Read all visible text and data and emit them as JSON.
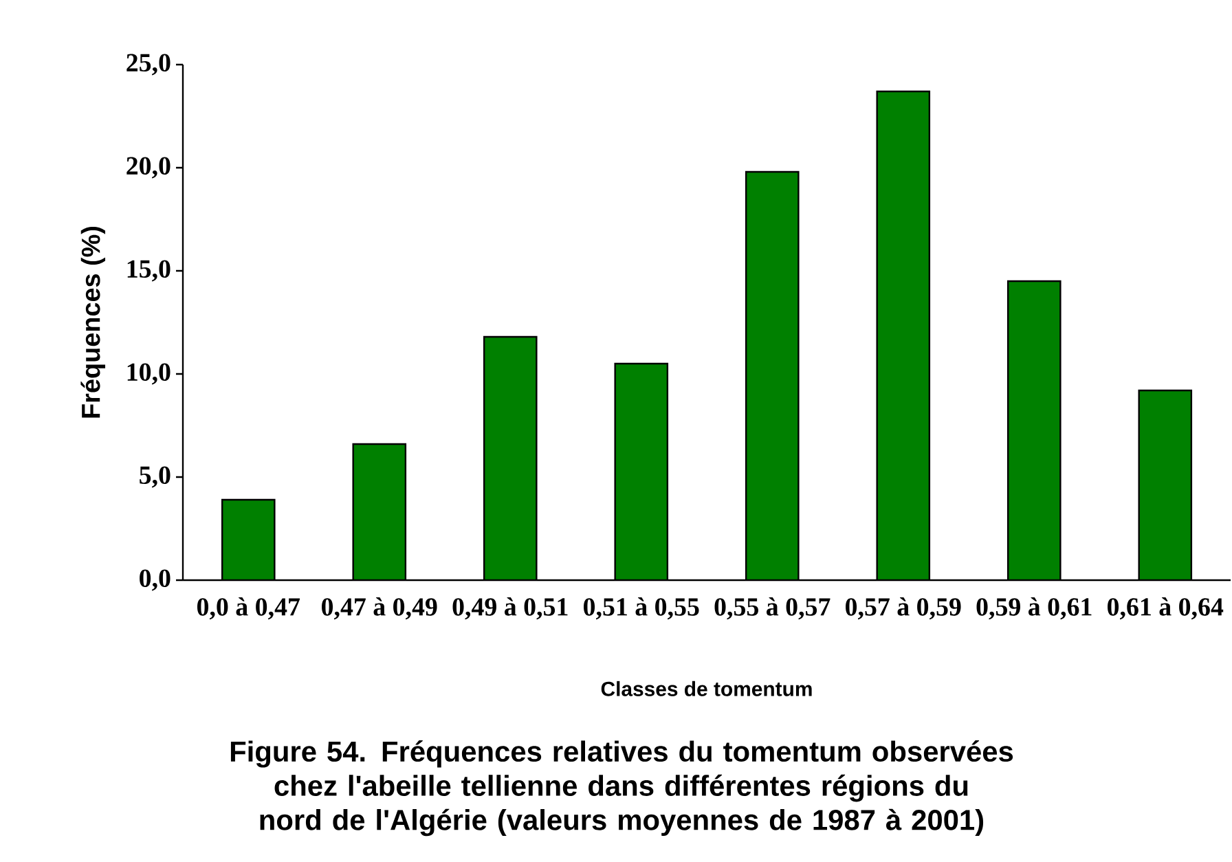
{
  "chart_data": {
    "type": "bar",
    "title": "Figure 54.  Fréquences relatives du tomentum observées chez l'abeille tellienne dans différentes régions du nord de l'Algérie (valeurs moyennes de 1987 à 2001)",
    "xlabel": "Classes de tomentum",
    "ylabel": "Fréquences (%)",
    "categories": [
      "0,0 à 0,47",
      "0,47 à 0,49",
      "0,49 à 0,51",
      "0,51 à 0,55",
      "0,55 à 0,57",
      "0,57 à 0,59",
      "0,59 à 0,61",
      "0,61 à 0,64"
    ],
    "values": [
      3.9,
      6.6,
      11.8,
      10.5,
      19.8,
      23.7,
      14.5,
      9.2
    ],
    "color": "#008000",
    "ylim": [
      0,
      25
    ],
    "yticks": [
      {
        "value": 0,
        "label": "0,0"
      },
      {
        "value": 5,
        "label": "5,0"
      },
      {
        "value": 10,
        "label": "10,0"
      },
      {
        "value": 15,
        "label": "15,0"
      },
      {
        "value": 20,
        "label": "20,0"
      },
      {
        "value": 25,
        "label": "25,0"
      }
    ],
    "grid": false
  }
}
